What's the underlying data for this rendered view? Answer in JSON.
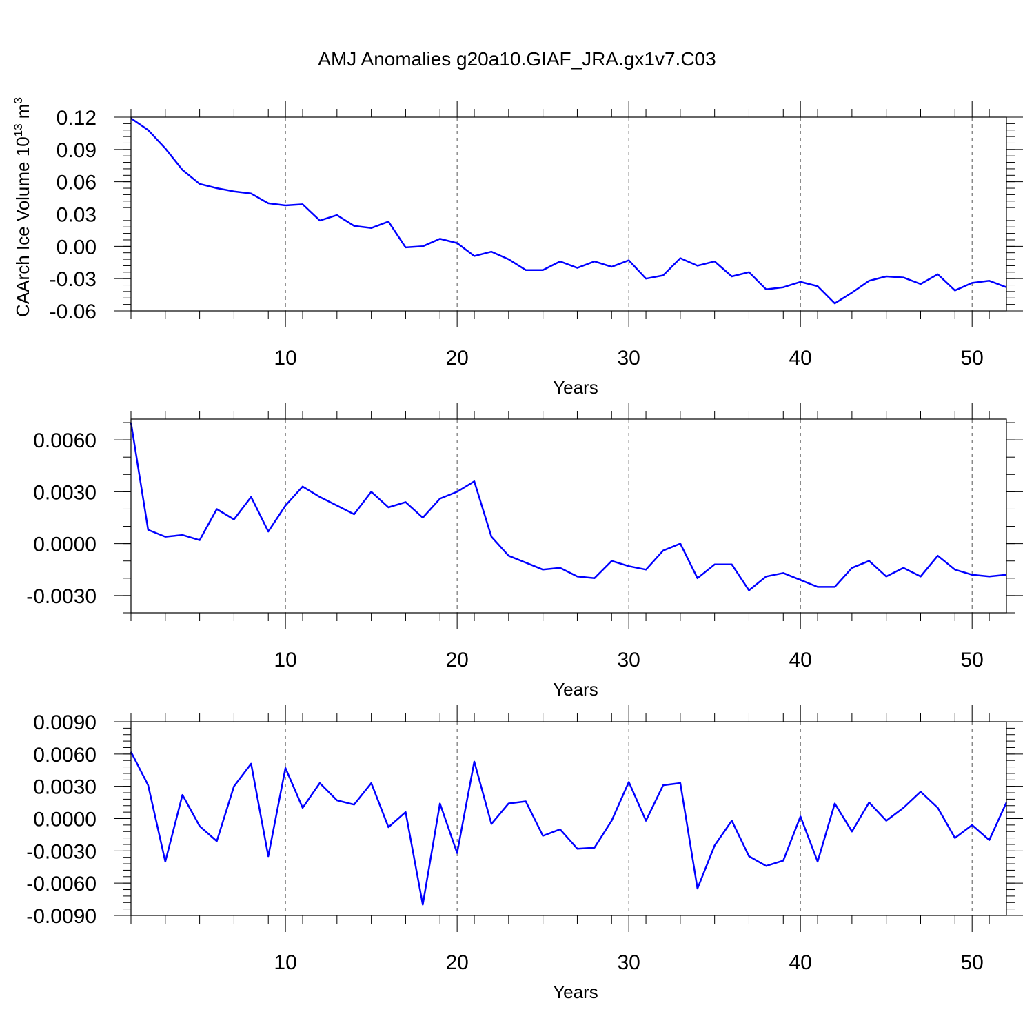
{
  "title": "AMJ Anomalies g20a10.GIAF_JRA.gx1v7.C03",
  "line_color": "#0000ff",
  "chart_data": [
    {
      "type": "line",
      "xlabel": "Years",
      "ylabel": "CAArch Ice Volume 10",
      "ylabel_sup": "13",
      "ylabel_unit": "m",
      "ylabel_unit_sup": "3",
      "xlim": [
        1,
        52
      ],
      "ylim": [
        -0.06,
        0.12
      ],
      "xticks": [
        10,
        20,
        30,
        40,
        50
      ],
      "yticks": [
        -0.06,
        -0.03,
        0.0,
        0.03,
        0.06,
        0.09,
        0.12
      ],
      "ytick_labels": [
        "-0.06",
        "-0.03",
        "0.00",
        "0.03",
        "0.06",
        "0.09",
        "0.12"
      ],
      "ytick_minor_step": 0.006,
      "x": [
        1,
        2,
        3,
        4,
        5,
        6,
        7,
        8,
        9,
        10,
        11,
        12,
        13,
        14,
        15,
        16,
        17,
        18,
        19,
        20,
        21,
        22,
        23,
        24,
        25,
        26,
        27,
        28,
        29,
        30,
        31,
        32,
        33,
        34,
        35,
        36,
        37,
        38,
        39,
        40,
        41,
        42,
        43,
        44,
        45,
        46,
        47,
        48,
        49,
        50,
        51,
        52
      ],
      "y": [
        0.119,
        0.108,
        0.091,
        0.071,
        0.058,
        0.054,
        0.051,
        0.049,
        0.04,
        0.038,
        0.039,
        0.024,
        0.029,
        0.019,
        0.017,
        0.023,
        -0.001,
        0.0,
        0.007,
        0.003,
        -0.009,
        -0.005,
        -0.012,
        -0.022,
        -0.022,
        -0.014,
        -0.02,
        -0.014,
        -0.019,
        -0.013,
        -0.03,
        -0.027,
        -0.011,
        -0.018,
        -0.014,
        -0.028,
        -0.024,
        -0.04,
        -0.038,
        -0.033,
        -0.037,
        -0.053,
        -0.043,
        -0.032,
        -0.028,
        -0.029,
        -0.035,
        -0.026,
        -0.041,
        -0.034,
        -0.032,
        -0.038
      ]
    },
    {
      "type": "line",
      "xlabel": "Years",
      "ylabel": "",
      "xlim": [
        1,
        52
      ],
      "ylim": [
        -0.004,
        0.0072
      ],
      "xticks": [
        10,
        20,
        30,
        40,
        50
      ],
      "yticks": [
        -0.003,
        0.0,
        0.003,
        0.006
      ],
      "ytick_labels": [
        "-0.0030",
        "0.0000",
        "0.0030",
        "0.0060"
      ],
      "ytick_minor_step": 0.001,
      "x": [
        1,
        2,
        3,
        4,
        5,
        6,
        7,
        8,
        9,
        10,
        11,
        12,
        13,
        14,
        15,
        16,
        17,
        18,
        19,
        20,
        21,
        22,
        23,
        24,
        25,
        26,
        27,
        28,
        29,
        30,
        31,
        32,
        33,
        34,
        35,
        36,
        37,
        38,
        39,
        40,
        41,
        42,
        43,
        44,
        45,
        46,
        47,
        48,
        49,
        50,
        51,
        52
      ],
      "y": [
        0.007,
        0.0008,
        0.0004,
        0.0005,
        0.0002,
        0.002,
        0.0014,
        0.0027,
        0.0007,
        0.0022,
        0.0033,
        0.0027,
        0.0022,
        0.0017,
        0.003,
        0.0021,
        0.0024,
        0.0015,
        0.0026,
        0.003,
        0.0036,
        0.0004,
        -0.0007,
        -0.0011,
        -0.0015,
        -0.0014,
        -0.0019,
        -0.002,
        -0.001,
        -0.0013,
        -0.0015,
        -0.0004,
        0.0,
        -0.002,
        -0.0012,
        -0.0012,
        -0.0027,
        -0.0019,
        -0.0017,
        -0.0021,
        -0.0025,
        -0.0025,
        -0.0014,
        -0.001,
        -0.0019,
        -0.0014,
        -0.0019,
        -0.0007,
        -0.0015,
        -0.0018,
        -0.0019,
        -0.0018
      ]
    },
    {
      "type": "line",
      "xlabel": "Years",
      "ylabel": "",
      "xlim": [
        1,
        52
      ],
      "ylim": [
        -0.009,
        0.009
      ],
      "xticks": [
        10,
        20,
        30,
        40,
        50
      ],
      "yticks": [
        -0.009,
        -0.006,
        -0.003,
        0.0,
        0.003,
        0.006,
        0.009
      ],
      "ytick_labels": [
        "-0.0090",
        "-0.0060",
        "-0.0030",
        "0.0000",
        "0.0030",
        "0.0060",
        "0.0090"
      ],
      "ytick_minor_step": 0.0006,
      "x": [
        1,
        2,
        3,
        4,
        5,
        6,
        7,
        8,
        9,
        10,
        11,
        12,
        13,
        14,
        15,
        16,
        17,
        18,
        19,
        20,
        21,
        22,
        23,
        24,
        25,
        26,
        27,
        28,
        29,
        30,
        31,
        32,
        33,
        34,
        35,
        36,
        37,
        38,
        39,
        40,
        41,
        42,
        43,
        44,
        45,
        46,
        47,
        48,
        49,
        50,
        51,
        52
      ],
      "y": [
        0.0062,
        0.0031,
        -0.004,
        0.0022,
        -0.0007,
        -0.0021,
        0.003,
        0.0051,
        -0.0035,
        0.0047,
        0.001,
        0.0033,
        0.0017,
        0.0013,
        0.0033,
        -0.0008,
        0.0006,
        -0.008,
        0.0014,
        -0.0032,
        0.0053,
        -0.0005,
        0.0014,
        0.0016,
        -0.0016,
        -0.001,
        -0.0028,
        -0.0027,
        -0.0002,
        0.0034,
        -0.0002,
        0.0031,
        0.0033,
        -0.0065,
        -0.0025,
        -0.0002,
        -0.0035,
        -0.0044,
        -0.0039,
        0.0002,
        -0.004,
        0.0014,
        -0.0012,
        0.0015,
        -0.0002,
        0.001,
        0.0025,
        0.001,
        -0.0018,
        -0.0006,
        -0.002,
        0.0015
      ]
    }
  ]
}
